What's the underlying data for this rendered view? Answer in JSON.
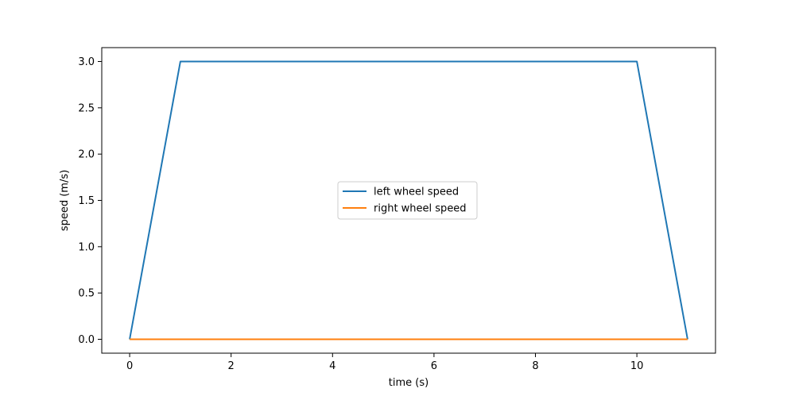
{
  "chart_data": {
    "type": "line",
    "title": "",
    "xlabel": "time (s)",
    "ylabel": "speed (m/s)",
    "xlim": [
      -0.55,
      11.55
    ],
    "ylim": [
      -0.15,
      3.15
    ],
    "xticks": [
      0,
      2,
      4,
      6,
      8,
      10
    ],
    "xtick_labels": [
      "0",
      "2",
      "4",
      "6",
      "8",
      "10"
    ],
    "yticks": [
      0.0,
      0.5,
      1.0,
      1.5,
      2.0,
      2.5,
      3.0
    ],
    "ytick_labels": [
      "0.0",
      "0.5",
      "1.0",
      "1.5",
      "2.0",
      "2.5",
      "3.0"
    ],
    "grid": false,
    "legend_position": "center",
    "series": [
      {
        "name": "left wheel speed",
        "color": "#1f77b4",
        "x": [
          0,
          1,
          10,
          11
        ],
        "y": [
          0,
          3,
          3,
          0
        ]
      },
      {
        "name": "right wheel speed",
        "color": "#ff7f0e",
        "x": [
          0,
          11
        ],
        "y": [
          0,
          0
        ]
      }
    ]
  }
}
